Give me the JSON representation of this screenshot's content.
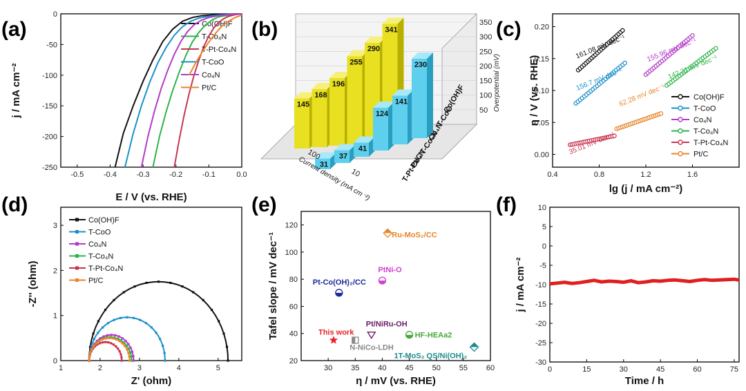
{
  "chart_data": [
    {
      "panel": "(a)",
      "type": "line",
      "xlabel": "E / V (vs. RHE)",
      "ylabel": "j / mA cm⁻²",
      "xlim": [
        -0.55,
        0.0
      ],
      "ylim": [
        -250,
        0
      ],
      "xticks": [
        "-0.5",
        "-0.4",
        "-0.3",
        "-0.2",
        "-0.1",
        "0.0"
      ],
      "yticks": [
        "0",
        "-50",
        "-100",
        "-150",
        "-200",
        "-250"
      ],
      "legend_position": "top-right",
      "series": [
        {
          "name": "Co(OH)F",
          "color": "#111111",
          "x": [
            -0.385,
            -0.36,
            -0.33,
            -0.3,
            -0.27,
            -0.24,
            -0.21,
            -0.18,
            -0.15,
            -0.12,
            -0.09,
            -0.06,
            -0.03,
            0.0
          ],
          "y": [
            -250,
            -195,
            -150,
            -110,
            -75,
            -45,
            -25,
            -12,
            -6,
            -3,
            -2,
            -1,
            -0.5,
            0
          ]
        },
        {
          "name": "T-Co4N",
          "color": "#2db34a",
          "x": [
            -0.27,
            -0.25,
            -0.23,
            -0.21,
            -0.19,
            -0.17,
            -0.15,
            -0.13,
            -0.11,
            -0.09,
            -0.07,
            -0.05,
            -0.02,
            0.0
          ],
          "y": [
            -250,
            -200,
            -160,
            -125,
            -95,
            -68,
            -46,
            -30,
            -18,
            -10,
            -5,
            -3,
            -1,
            0
          ]
        },
        {
          "name": "T-Pt-Co4N",
          "color": "#c8344f",
          "x": [
            -0.205,
            -0.19,
            -0.175,
            -0.16,
            -0.145,
            -0.13,
            -0.115,
            -0.1,
            -0.085,
            -0.07,
            -0.055,
            -0.04,
            -0.02,
            0.0
          ],
          "y": [
            -250,
            -205,
            -165,
            -130,
            -100,
            -75,
            -53,
            -36,
            -23,
            -14,
            -8,
            -4,
            -1.5,
            0
          ]
        },
        {
          "name": "T-CoO",
          "color": "#1c8fc8",
          "x": [
            -0.355,
            -0.33,
            -0.305,
            -0.28,
            -0.255,
            -0.23,
            -0.205,
            -0.18,
            -0.155,
            -0.13,
            -0.1,
            -0.07,
            -0.04,
            0.0
          ],
          "y": [
            -250,
            -195,
            -150,
            -112,
            -80,
            -55,
            -35,
            -21,
            -12,
            -7,
            -4,
            -2,
            -1,
            0
          ]
        },
        {
          "name": "Co4N",
          "color": "#b23ac8",
          "x": [
            -0.305,
            -0.285,
            -0.265,
            -0.245,
            -0.225,
            -0.205,
            -0.185,
            -0.165,
            -0.145,
            -0.125,
            -0.1,
            -0.07,
            -0.04,
            0.0
          ],
          "y": [
            -250,
            -200,
            -158,
            -122,
            -92,
            -66,
            -45,
            -29,
            -18,
            -11,
            -6,
            -3,
            -1,
            0
          ]
        },
        {
          "name": "Pt/C",
          "color": "#e8852a",
          "x": [
            -0.16,
            -0.14,
            -0.12,
            -0.1,
            -0.08,
            -0.06,
            -0.04,
            -0.02,
            0.0
          ],
          "y": [
            -100,
            -80,
            -62,
            -46,
            -32,
            -20,
            -12,
            -6,
            -2
          ]
        }
      ]
    },
    {
      "panel": "(b)",
      "type": "bar",
      "zlabel": "Overpotential (mV)",
      "xlabel": "Current density (mA cm⁻²)",
      "categories": [
        "Co(OH)F",
        "T-CoO",
        "Co4N",
        "T-Co4N",
        "Pt/C",
        "T-Pt-Co4N"
      ],
      "zticks": [
        "50",
        "100",
        "150",
        "200",
        "250",
        "300",
        "350"
      ],
      "current_density_labels": [
        "100",
        "10"
      ],
      "series": [
        {
          "name": "100",
          "color": "#e8e020",
          "values": [
            341,
            290,
            255,
            196,
            168,
            145
          ]
        },
        {
          "name": "10",
          "color": "#5ed0ee",
          "values": [
            230,
            141,
            124,
            41,
            37,
            31
          ]
        }
      ]
    },
    {
      "panel": "(c)",
      "type": "scatter",
      "xlabel": "lg (j / mA cm⁻²)",
      "ylabel": "η / V (vs. RHE)",
      "xlim": [
        0.4,
        2.0
      ],
      "ylim": [
        -0.02,
        0.22
      ],
      "xticks": [
        "0.4",
        "0.8",
        "1.2",
        "1.6"
      ],
      "yticks": [
        "0.00",
        "0.05",
        "0.10",
        "0.15",
        "0.20"
      ],
      "legend_position": "right",
      "series": [
        {
          "name": "Co(OH)F",
          "color": "#111111",
          "x0": 0.62,
          "x1": 1.0,
          "y0": 0.132,
          "y1": 0.194,
          "annotation": "161.08 mV dec⁻¹"
        },
        {
          "name": "T-CoO",
          "color": "#1c8fc8",
          "x0": 0.6,
          "x1": 1.02,
          "y0": 0.08,
          "y1": 0.143,
          "annotation": "156.7 mV dec⁻¹"
        },
        {
          "name": "Co4N",
          "color": "#b23ac8",
          "x0": 1.2,
          "x1": 1.6,
          "y0": 0.125,
          "y1": 0.186,
          "annotation": "155.96 mV dec⁻¹"
        },
        {
          "name": "T-Co4N",
          "color": "#2db34a",
          "x0": 1.38,
          "x1": 1.8,
          "y0": 0.108,
          "y1": 0.166,
          "annotation": "142.31 mV dec⁻¹"
        },
        {
          "name": "T-Pt-Co4N",
          "color": "#c8344f",
          "x0": 0.55,
          "x1": 0.93,
          "y0": 0.015,
          "y1": 0.029,
          "annotation": "35.01 mV dec⁻¹"
        },
        {
          "name": "Pt/C",
          "color": "#e8852a",
          "x0": 0.95,
          "x1": 1.33,
          "y0": 0.04,
          "y1": 0.064,
          "annotation": "62.28 mV dec⁻¹"
        }
      ]
    },
    {
      "panel": "(d)",
      "type": "scatter",
      "xlabel": "Z' (ohm)",
      "ylabel": "-Z'' (ohm)",
      "xlim": [
        1,
        5.6
      ],
      "ylim": [
        0,
        3.4
      ],
      "xticks": [
        "1",
        "2",
        "3",
        "4",
        "5"
      ],
      "yticks": [
        "0",
        "1",
        "2",
        "3"
      ],
      "legend_position": "top-right",
      "series": [
        {
          "name": "Co(OH)F",
          "color": "#111111",
          "x_start": 1.72,
          "x_end": 5.25,
          "peak": 1.75
        },
        {
          "name": "T-CoO",
          "color": "#1c8fc8",
          "x_start": 1.72,
          "x_end": 3.65,
          "peak": 0.96
        },
        {
          "name": "Co4N",
          "color": "#b23ac8",
          "x_start": 1.72,
          "x_end": 2.85,
          "peak": 0.57
        },
        {
          "name": "T-Co4N",
          "color": "#2db34a",
          "x_start": 1.72,
          "x_end": 2.8,
          "peak": 0.52
        },
        {
          "name": "T-Pt-Co4N",
          "color": "#c8344f",
          "x_start": 1.72,
          "x_end": 2.55,
          "peak": 0.41
        },
        {
          "name": "Pt/C",
          "color": "#e8852a",
          "x_start": 1.72,
          "x_end": 2.75,
          "peak": 0.5
        }
      ]
    },
    {
      "panel": "(e)",
      "type": "scatter",
      "xlabel": "η / mV (vs. RHE)",
      "ylabel": "Tafel slope / mV dec⁻¹",
      "xlim": [
        25,
        60
      ],
      "ylim": [
        20,
        130
      ],
      "xticks": [
        "30",
        "35",
        "40",
        "45",
        "50",
        "55",
        "60"
      ],
      "yticks": [
        "20",
        "40",
        "60",
        "80",
        "100",
        "120"
      ],
      "points": [
        {
          "label": "This work",
          "x": 31,
          "y": 35,
          "color": "#e8202a"
        },
        {
          "label": "N-NiCo-LDH",
          "x": 35,
          "y": 35,
          "color": "#888888"
        },
        {
          "label": "Pt/NiRu-OH",
          "x": 38,
          "y": 39,
          "color": "#6a1a6a"
        },
        {
          "label": "Pt-Co(OH)₂/CC",
          "x": 32,
          "y": 70,
          "color": "#1a2a9a"
        },
        {
          "label": "PtNi-O",
          "x": 40,
          "y": 79,
          "color": "#d040d0"
        },
        {
          "label": "Ru-MoS₂/CC",
          "x": 41,
          "y": 114,
          "color": "#e8852a"
        },
        {
          "label": "HF-HEAa2",
          "x": 45,
          "y": 39,
          "color": "#4aa83a"
        },
        {
          "label": "1T-MoS₂ QS/Ni(OH)₂",
          "x": 57,
          "y": 30,
          "color": "#1a8a8a"
        }
      ]
    },
    {
      "panel": "(f)",
      "type": "line",
      "xlabel": "Time / h",
      "ylabel": "j / mA cm⁻²",
      "xlim": [
        0,
        77
      ],
      "ylim": [
        -30,
        10
      ],
      "xticks": [
        "0",
        "15",
        "30",
        "45",
        "60",
        "75"
      ],
      "yticks": [
        "10",
        "5",
        "0",
        "-5",
        "-10",
        "-15",
        "-20",
        "-25",
        "-30"
      ],
      "series": [
        {
          "name": "",
          "color": "#e02020",
          "x": [
            0,
            3,
            6,
            9,
            12,
            15,
            18,
            21,
            24,
            27,
            30,
            33,
            36,
            39,
            42,
            45,
            48,
            51,
            54,
            57,
            60,
            63,
            66,
            69,
            72,
            75,
            77
          ],
          "y": [
            -9.8,
            -9.6,
            -9.4,
            -9.7,
            -9.5,
            -9.2,
            -8.9,
            -9.3,
            -9.1,
            -9.2,
            -9.4,
            -9.0,
            -9.5,
            -9.3,
            -9.0,
            -9.1,
            -8.9,
            -8.8,
            -9.0,
            -9.2,
            -8.9,
            -8.7,
            -8.9,
            -8.8,
            -8.7,
            -8.6,
            -8.8
          ]
        }
      ]
    }
  ]
}
